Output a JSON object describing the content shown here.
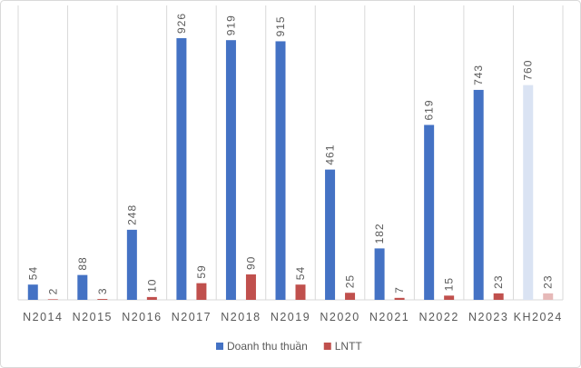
{
  "chart_data": {
    "type": "bar",
    "categories": [
      "N2014",
      "N2015",
      "N2016",
      "N2017",
      "N2018",
      "N2019",
      "N2020",
      "N2021",
      "N2022",
      "N2023",
      "KH2024"
    ],
    "series": [
      {
        "name": "Doanh thu thuần",
        "color": "#4472c4",
        "colors": [
          "#4472c4",
          "#4472c4",
          "#4472c4",
          "#4472c4",
          "#4472c4",
          "#4472c4",
          "#4472c4",
          "#4472c4",
          "#4472c4",
          "#4472c4",
          "#dae3f3"
        ],
        "values": [
          54,
          88,
          248,
          926,
          919,
          915,
          461,
          182,
          619,
          743,
          760
        ]
      },
      {
        "name": "LNTT",
        "color": "#c0504d",
        "colors": [
          "#c0504d",
          "#c0504d",
          "#c0504d",
          "#c0504d",
          "#c0504d",
          "#c0504d",
          "#c0504d",
          "#c0504d",
          "#c0504d",
          "#c0504d",
          "#e6b9b8"
        ],
        "values": [
          2,
          3,
          10,
          59,
          90,
          54,
          25,
          7,
          15,
          23,
          23
        ]
      }
    ],
    "ylim": [
      0,
      1000
    ],
    "grid": true,
    "legend": "bottom"
  }
}
